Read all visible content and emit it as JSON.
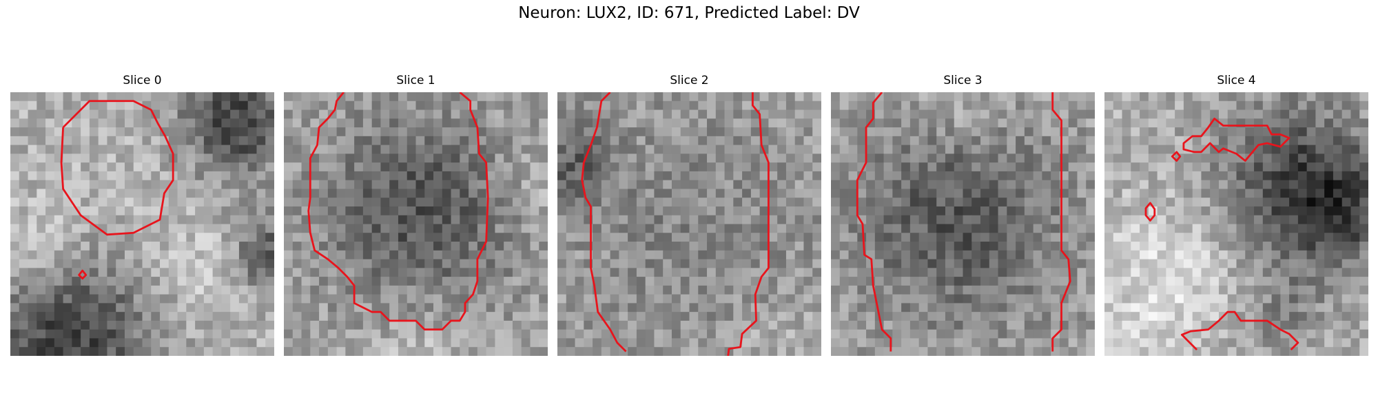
{
  "figure": {
    "title": "Neuron: LUX2, ID: 671, Predicted Label: DV"
  },
  "colors": {
    "contour": "#e8141c",
    "background": "#ffffff"
  },
  "colormap": "gray",
  "grid_size": 30,
  "slices": [
    {
      "label": "Slice 0",
      "dark_regions": "top-right corner, bottom-left, right edge",
      "contours": 2
    },
    {
      "label": "Slice 1",
      "dark_regions": "center mass",
      "contours": 1
    },
    {
      "label": "Slice 2",
      "dark_regions": "left edge band",
      "contours": 2
    },
    {
      "label": "Slice 3",
      "dark_regions": "center mass",
      "contours": 2
    },
    {
      "label": "Slice 4",
      "dark_regions": "upper-right area",
      "contours": 4
    }
  ]
}
